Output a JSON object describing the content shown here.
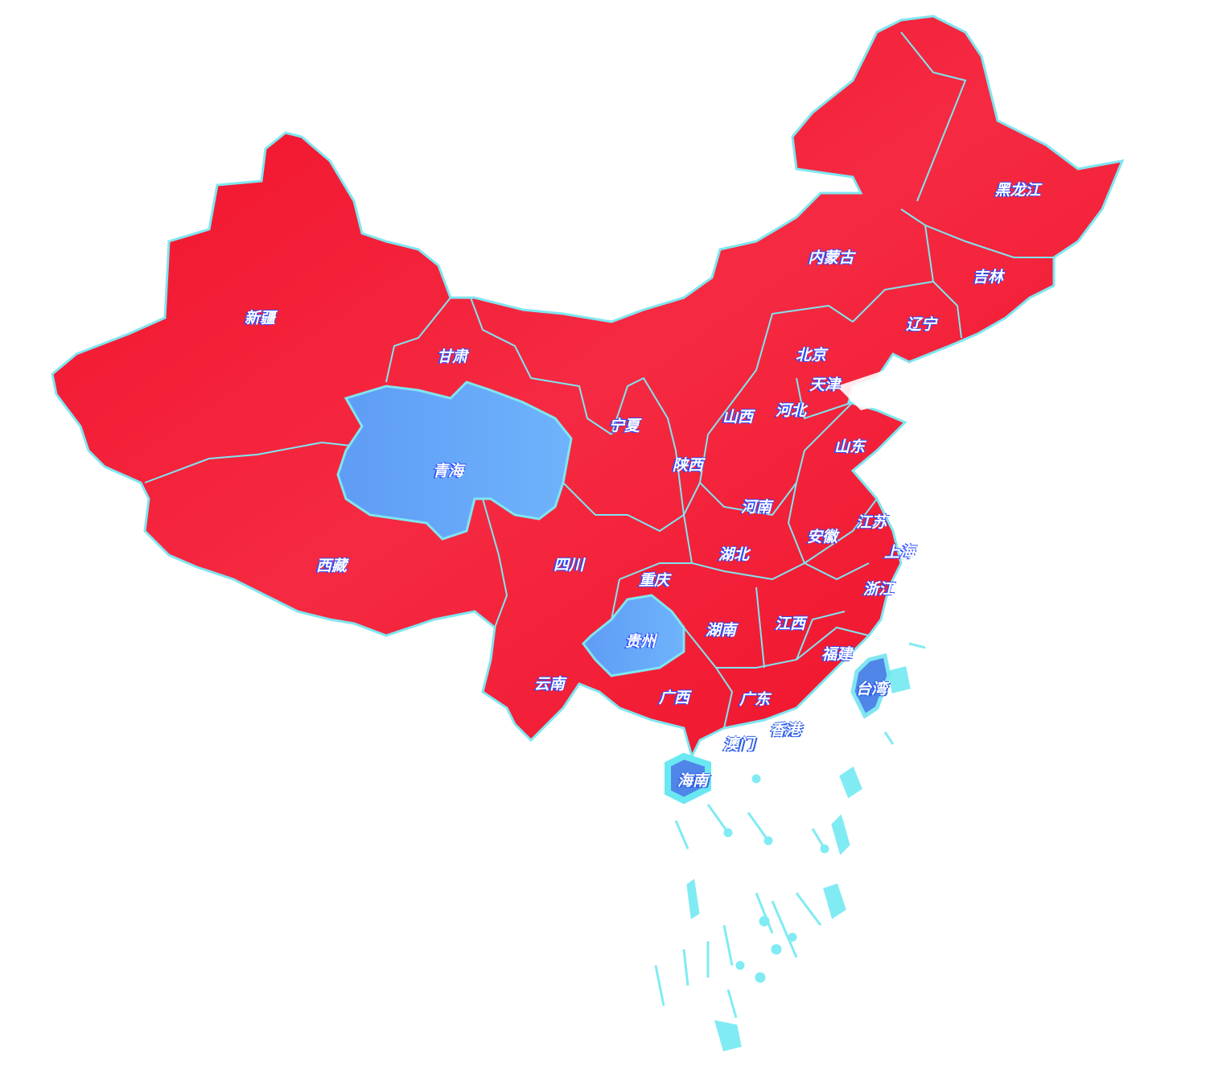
{
  "colors": {
    "region_default": "#f3132f",
    "region_highlight": "#69aaf7",
    "border": "#7fe6f0",
    "islands": "#6ae8f2",
    "label_shadow": "#2a4cff"
  },
  "highlighted_regions": [
    "青海",
    "贵州",
    "台湾"
  ],
  "provinces": [
    {
      "name": "黑龙江"
    },
    {
      "name": "内蒙古"
    },
    {
      "name": "吉林"
    },
    {
      "name": "辽宁"
    },
    {
      "name": "北京"
    },
    {
      "name": "天津"
    },
    {
      "name": "河北"
    },
    {
      "name": "山西"
    },
    {
      "name": "山东"
    },
    {
      "name": "宁夏"
    },
    {
      "name": "甘肃"
    },
    {
      "name": "新疆"
    },
    {
      "name": "青海"
    },
    {
      "name": "陕西"
    },
    {
      "name": "河南"
    },
    {
      "name": "江苏"
    },
    {
      "name": "安徽"
    },
    {
      "name": "上海"
    },
    {
      "name": "湖北"
    },
    {
      "name": "四川"
    },
    {
      "name": "重庆"
    },
    {
      "name": "西藏"
    },
    {
      "name": "浙江"
    },
    {
      "name": "湖南"
    },
    {
      "name": "江西"
    },
    {
      "name": "贵州"
    },
    {
      "name": "福建"
    },
    {
      "name": "云南"
    },
    {
      "name": "广西"
    },
    {
      "name": "广东"
    },
    {
      "name": "台湾"
    },
    {
      "name": "香港"
    },
    {
      "name": "澳门"
    },
    {
      "name": "海南"
    }
  ]
}
